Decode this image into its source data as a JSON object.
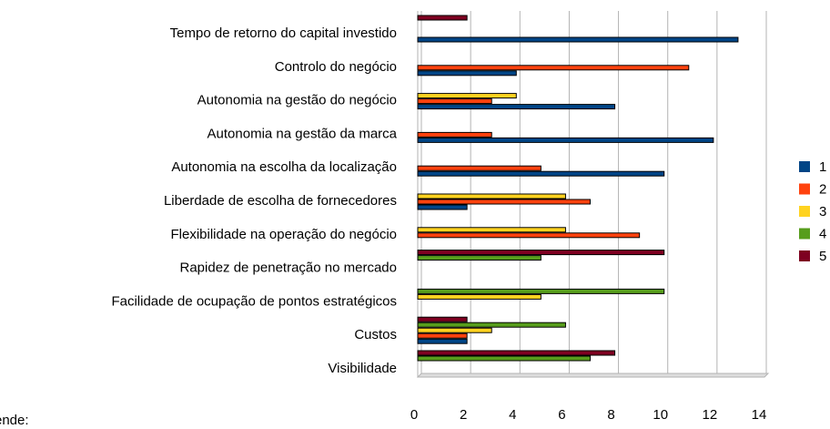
{
  "chart_data": {
    "type": "bar",
    "orientation": "horizontal",
    "categories": [
      "Tempo de retorno do capital investido",
      "Controlo do negócio",
      "Autonomia na gestão do negócio",
      "Autonomia na gestão da marca",
      "Autonomia na escolha da localização",
      "Liberdade de escolha de fornecedores",
      "Flexibilidade na operação do negócio",
      "Rapidez de penetração no mercado",
      "Facilidade de ocupação de pontos estratégicos",
      "Custos",
      "Visibilidade"
    ],
    "series": [
      {
        "name": "1",
        "color": "#004586",
        "values": [
          13,
          4,
          8,
          12,
          10,
          2,
          0,
          0,
          0,
          2,
          0
        ]
      },
      {
        "name": "2",
        "color": "#ff420e",
        "values": [
          0,
          11,
          3,
          3,
          5,
          7,
          9,
          0,
          0,
          2,
          0
        ]
      },
      {
        "name": "3",
        "color": "#ffd320",
        "values": [
          0,
          0,
          4,
          0,
          0,
          6,
          6,
          0,
          5,
          3,
          0
        ]
      },
      {
        "name": "4",
        "color": "#579d1c",
        "values": [
          0,
          0,
          0,
          0,
          0,
          0,
          0,
          5,
          10,
          6,
          7
        ]
      },
      {
        "name": "5",
        "color": "#7e0021",
        "values": [
          2,
          0,
          0,
          0,
          0,
          0,
          0,
          10,
          0,
          2,
          8
        ]
      }
    ],
    "xlim": [
      0,
      14
    ],
    "xticks": [
      0,
      2,
      4,
      6,
      8,
      10,
      12,
      14
    ],
    "grid": true,
    "legend": "right",
    "footer_text": "ende:"
  }
}
